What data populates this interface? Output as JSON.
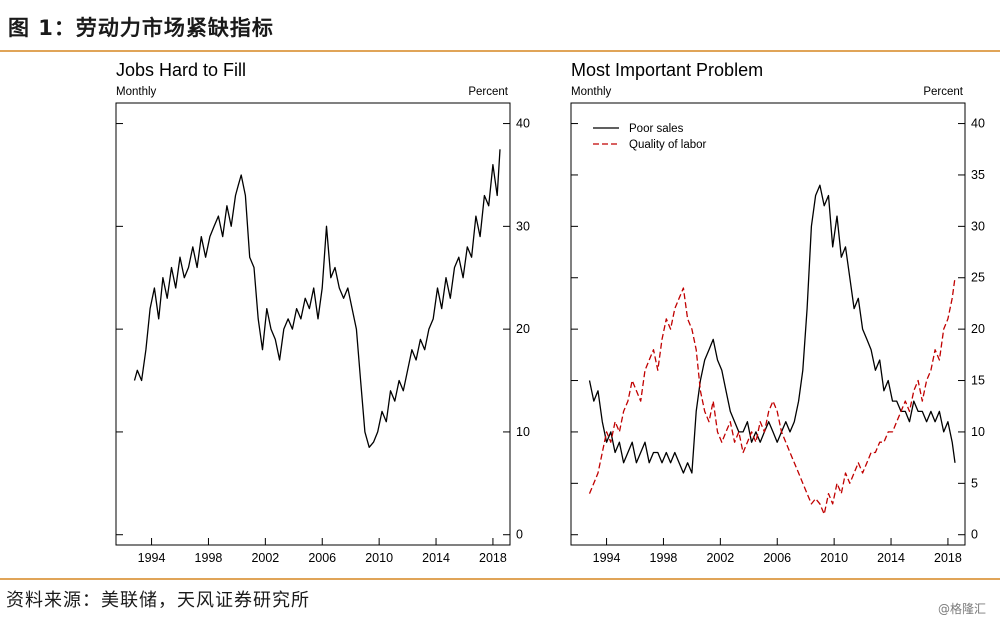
{
  "figure_title": "图 1：劳动力市场紧缺指标",
  "source": "资料来源：美联储，天风证券研究所",
  "watermark": "@格隆汇",
  "chart_data": [
    {
      "type": "line",
      "title": "Jobs Hard to Fill",
      "frequency_label": "Monthly",
      "unit_label": "Percent",
      "xlim": [
        1991.5,
        2019.2
      ],
      "ylim": [
        -1,
        42
      ],
      "yticks": [
        0,
        10,
        20,
        30,
        40
      ],
      "xticks": [
        1994,
        1998,
        2002,
        2006,
        2010,
        2014,
        2018
      ],
      "series": [
        {
          "color": "#000000",
          "dash": "solid",
          "x": [
            1992.8,
            1993.0,
            1993.3,
            1993.6,
            1993.9,
            1994.2,
            1994.5,
            1994.8,
            1995.1,
            1995.4,
            1995.7,
            1996.0,
            1996.3,
            1996.6,
            1996.9,
            1997.2,
            1997.5,
            1997.8,
            1998.1,
            1998.4,
            1998.7,
            1999.0,
            1999.3,
            1999.6,
            1999.9,
            2000.1,
            2000.3,
            2000.6,
            2000.9,
            2001.2,
            2001.5,
            2001.8,
            2002.1,
            2002.4,
            2002.7,
            2003.0,
            2003.3,
            2003.6,
            2003.9,
            2004.2,
            2004.5,
            2004.8,
            2005.1,
            2005.4,
            2005.7,
            2006.0,
            2006.3,
            2006.6,
            2006.9,
            2007.2,
            2007.5,
            2007.8,
            2008.1,
            2008.4,
            2008.7,
            2009.0,
            2009.3,
            2009.6,
            2009.9,
            2010.2,
            2010.5,
            2010.8,
            2011.1,
            2011.4,
            2011.7,
            2012.0,
            2012.3,
            2012.6,
            2012.9,
            2013.2,
            2013.5,
            2013.8,
            2014.1,
            2014.4,
            2014.7,
            2015.0,
            2015.3,
            2015.6,
            2015.9,
            2016.2,
            2016.5,
            2016.8,
            2017.1,
            2017.4,
            2017.7,
            2018.0,
            2018.3,
            2018.5
          ],
          "y": [
            15,
            16,
            15,
            18,
            22,
            24,
            21,
            25,
            23,
            26,
            24,
            27,
            25,
            26,
            28,
            26,
            29,
            27,
            29,
            30,
            31,
            29,
            32,
            30,
            33,
            34,
            35,
            33,
            27,
            26,
            21,
            18,
            22,
            20,
            19,
            17,
            20,
            21,
            20,
            22,
            21,
            23,
            22,
            24,
            21,
            24,
            30,
            25,
            26,
            24,
            23,
            24,
            22,
            20,
            15,
            10,
            8.5,
            9,
            10,
            12,
            11,
            14,
            13,
            15,
            14,
            16,
            18,
            17,
            19,
            18,
            20,
            21,
            24,
            22,
            25,
            23,
            26,
            27,
            25,
            28,
            27,
            31,
            29,
            33,
            32,
            36,
            33,
            37.5
          ]
        }
      ]
    },
    {
      "type": "line",
      "title": "Most Important Problem",
      "frequency_label": "Monthly",
      "unit_label": "Percent",
      "xlim": [
        1991.5,
        2019.2
      ],
      "ylim": [
        -1,
        42
      ],
      "yticks": [
        0,
        5,
        10,
        15,
        20,
        25,
        30,
        35,
        40
      ],
      "xticks": [
        1994,
        1998,
        2002,
        2006,
        2010,
        2014,
        2018
      ],
      "legend_position": "top-left",
      "series": [
        {
          "name": "Poor sales",
          "color": "#000000",
          "dash": "solid",
          "x": [
            1992.8,
            1993.1,
            1993.4,
            1993.7,
            1994.0,
            1994.3,
            1994.6,
            1994.9,
            1995.2,
            1995.5,
            1995.8,
            1996.1,
            1996.4,
            1996.7,
            1997.0,
            1997.3,
            1997.6,
            1997.9,
            1998.2,
            1998.5,
            1998.8,
            1999.1,
            1999.4,
            1999.7,
            2000.0,
            2000.3,
            2000.6,
            2000.9,
            2001.2,
            2001.5,
            2001.8,
            2002.1,
            2002.4,
            2002.7,
            2003.0,
            2003.3,
            2003.6,
            2003.9,
            2004.2,
            2004.5,
            2004.8,
            2005.1,
            2005.4,
            2005.7,
            2006.0,
            2006.3,
            2006.6,
            2006.9,
            2007.2,
            2007.5,
            2007.8,
            2008.1,
            2008.4,
            2008.7,
            2009.0,
            2009.3,
            2009.6,
            2009.9,
            2010.2,
            2010.5,
            2010.8,
            2011.1,
            2011.4,
            2011.7,
            2012.0,
            2012.3,
            2012.6,
            2012.9,
            2013.2,
            2013.5,
            2013.8,
            2014.1,
            2014.4,
            2014.7,
            2015.0,
            2015.3,
            2015.6,
            2015.9,
            2016.2,
            2016.5,
            2016.8,
            2017.1,
            2017.4,
            2017.7,
            2018.0,
            2018.3,
            2018.5
          ],
          "y": [
            15,
            13,
            14,
            11,
            9,
            10,
            8,
            9,
            7,
            8,
            9,
            7,
            8,
            9,
            7,
            8,
            8,
            7,
            8,
            7,
            8,
            7,
            6,
            7,
            6,
            12,
            15,
            17,
            18,
            19,
            17,
            16,
            14,
            12,
            11,
            10,
            10,
            11,
            9,
            10,
            9,
            10,
            11,
            10,
            9,
            10,
            11,
            10,
            11,
            13,
            16,
            22,
            30,
            33,
            34,
            32,
            33,
            28,
            31,
            27,
            28,
            25,
            22,
            23,
            20,
            19,
            18,
            16,
            17,
            14,
            15,
            13,
            13,
            12,
            12,
            11,
            13,
            12,
            12,
            11,
            12,
            11,
            12,
            10,
            11,
            9,
            7
          ]
        },
        {
          "name": "Quality of labor",
          "color": "#c00000",
          "dash": "dashed",
          "x": [
            1992.8,
            1993.1,
            1993.4,
            1993.7,
            1994.0,
            1994.3,
            1994.6,
            1994.9,
            1995.2,
            1995.5,
            1995.8,
            1996.1,
            1996.4,
            1996.7,
            1997.0,
            1997.3,
            1997.6,
            1997.9,
            1998.2,
            1998.5,
            1998.8,
            1999.1,
            1999.4,
            1999.7,
            2000.0,
            2000.3,
            2000.6,
            2000.9,
            2001.2,
            2001.5,
            2001.8,
            2002.1,
            2002.4,
            2002.7,
            2003.0,
            2003.3,
            2003.6,
            2003.9,
            2004.2,
            2004.5,
            2004.8,
            2005.1,
            2005.4,
            2005.7,
            2006.0,
            2006.3,
            2006.6,
            2006.9,
            2007.2,
            2007.5,
            2007.8,
            2008.1,
            2008.4,
            2008.7,
            2009.0,
            2009.3,
            2009.6,
            2009.9,
            2010.2,
            2010.5,
            2010.8,
            2011.1,
            2011.4,
            2011.7,
            2012.0,
            2012.3,
            2012.6,
            2012.9,
            2013.2,
            2013.5,
            2013.8,
            2014.1,
            2014.4,
            2014.7,
            2015.0,
            2015.3,
            2015.6,
            2015.9,
            2016.2,
            2016.5,
            2016.8,
            2017.1,
            2017.4,
            2017.7,
            2018.0,
            2018.3,
            2018.5
          ],
          "y": [
            4,
            5,
            6,
            8,
            10,
            9,
            11,
            10,
            12,
            13,
            15,
            14,
            13,
            16,
            17,
            18,
            16,
            19,
            21,
            20,
            22,
            23,
            24,
            21,
            20,
            18,
            14,
            12,
            11,
            13,
            10,
            9,
            10,
            11,
            9,
            10,
            8,
            9,
            10,
            9,
            11,
            10,
            12,
            13,
            12,
            10,
            9,
            8,
            7,
            6,
            5,
            4,
            3,
            3.5,
            3,
            2,
            4,
            3,
            5,
            4,
            6,
            5,
            6,
            7,
            6,
            7,
            8,
            8,
            9,
            9,
            10,
            10,
            11,
            12,
            13,
            12,
            14,
            15,
            13,
            15,
            16,
            18,
            17,
            20,
            21,
            23,
            25
          ]
        }
      ]
    }
  ]
}
